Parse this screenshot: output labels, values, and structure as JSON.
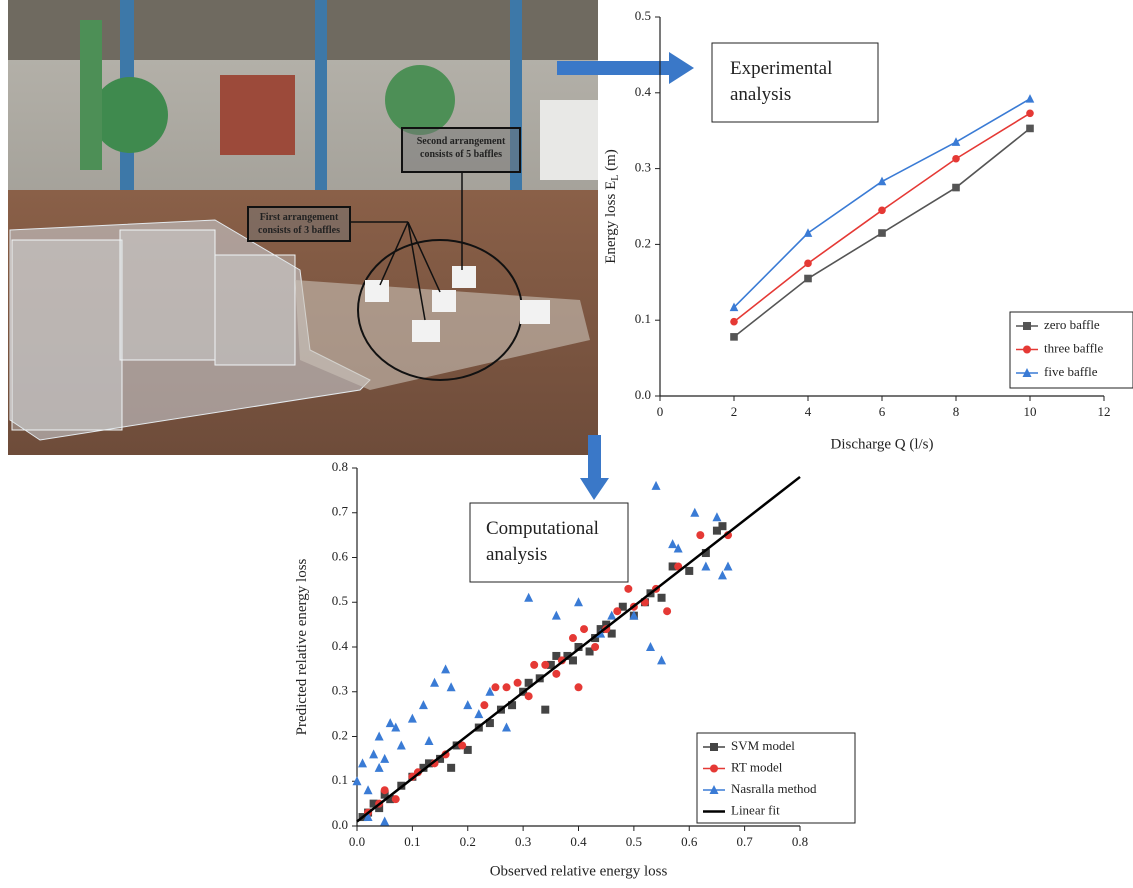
{
  "photo": {
    "labels": [
      [
        "Second arrangement",
        "consists of 5 baffles"
      ],
      [
        "First arrangement",
        "consists of 3 baffles"
      ]
    ]
  },
  "annotations": {
    "experimental": [
      "Experimental",
      "analysis"
    ],
    "computational": [
      "Computational",
      "analysis"
    ]
  },
  "chart_data": [
    {
      "type": "line",
      "xlabel": "Discharge Q (l/s)",
      "ylabel": "Energy loss E",
      "ylabel_sub": "L",
      "ylabel_unit": "(m)",
      "x": [
        2,
        4,
        6,
        8,
        10
      ],
      "series": [
        {
          "name": "zero baffle",
          "color": "#555555",
          "marker": "square",
          "values": [
            0.078,
            0.155,
            0.215,
            0.275,
            0.353
          ]
        },
        {
          "name": "three baffle",
          "color": "#e53935",
          "marker": "circle",
          "values": [
            0.098,
            0.175,
            0.245,
            0.313,
            0.373
          ]
        },
        {
          "name": "five baffle",
          "color": "#3a7bd5",
          "marker": "triangle",
          "values": [
            0.117,
            0.215,
            0.283,
            0.335,
            0.392
          ]
        }
      ],
      "xlim": [
        0,
        12
      ],
      "xticks": [
        0,
        2,
        4,
        6,
        8,
        10,
        12
      ],
      "ylim": [
        0,
        0.5
      ],
      "yticks": [
        {
          "value": 0,
          "label": "0.0"
        },
        0.1,
        0.2,
        0.3,
        0.4,
        0.5
      ],
      "legend": "lower right"
    },
    {
      "type": "scatter",
      "xlabel": "Observed relative energy loss",
      "ylabel": "Predicted relative energy loss",
      "series": [
        {
          "name": "SVM model",
          "color": "#444444",
          "marker": "square",
          "x": [
            0.01,
            0.02,
            0.03,
            0.04,
            0.05,
            0.06,
            0.08,
            0.1,
            0.12,
            0.13,
            0.15,
            0.17,
            0.18,
            0.2,
            0.22,
            0.24,
            0.26,
            0.28,
            0.3,
            0.31,
            0.33,
            0.34,
            0.35,
            0.36,
            0.38,
            0.39,
            0.4,
            0.42,
            0.43,
            0.44,
            0.45,
            0.46,
            0.48,
            0.5,
            0.52,
            0.53,
            0.55,
            0.57,
            0.6,
            0.63,
            0.65,
            0.66
          ],
          "values": [
            0.02,
            0.03,
            0.05,
            0.04,
            0.07,
            0.06,
            0.09,
            0.11,
            0.13,
            0.14,
            0.15,
            0.13,
            0.18,
            0.17,
            0.22,
            0.23,
            0.26,
            0.27,
            0.3,
            0.32,
            0.33,
            0.26,
            0.36,
            0.38,
            0.38,
            0.37,
            0.4,
            0.39,
            0.42,
            0.44,
            0.45,
            0.43,
            0.49,
            0.47,
            0.5,
            0.52,
            0.51,
            0.58,
            0.57,
            0.61,
            0.66,
            0.67
          ]
        },
        {
          "name": "RT model",
          "color": "#e53935",
          "marker": "circle",
          "x": [
            0.02,
            0.04,
            0.05,
            0.07,
            0.1,
            0.11,
            0.14,
            0.16,
            0.19,
            0.23,
            0.25,
            0.27,
            0.29,
            0.31,
            0.32,
            0.34,
            0.36,
            0.37,
            0.39,
            0.4,
            0.41,
            0.43,
            0.45,
            0.47,
            0.49,
            0.5,
            0.52,
            0.54,
            0.56,
            0.58,
            0.62,
            0.67
          ],
          "values": [
            0.03,
            0.05,
            0.08,
            0.06,
            0.11,
            0.12,
            0.14,
            0.16,
            0.18,
            0.27,
            0.31,
            0.31,
            0.32,
            0.29,
            0.36,
            0.36,
            0.34,
            0.37,
            0.42,
            0.31,
            0.44,
            0.4,
            0.44,
            0.48,
            0.53,
            0.49,
            0.5,
            0.53,
            0.48,
            0.58,
            0.65,
            0.65
          ]
        },
        {
          "name": "Nasralla method",
          "color": "#3a7bd5",
          "marker": "triangle",
          "x": [
            0.0,
            0.01,
            0.02,
            0.03,
            0.04,
            0.05,
            0.06,
            0.07,
            0.08,
            0.1,
            0.12,
            0.14,
            0.16,
            0.17,
            0.2,
            0.22,
            0.24,
            0.27,
            0.31,
            0.36,
            0.4,
            0.44,
            0.46,
            0.5,
            0.53,
            0.54,
            0.55,
            0.57,
            0.58,
            0.61,
            0.63,
            0.65,
            0.66,
            0.67,
            0.02,
            0.05,
            0.13,
            0.04
          ],
          "values": [
            0.1,
            0.14,
            0.08,
            0.16,
            0.2,
            0.15,
            0.23,
            0.22,
            0.18,
            0.24,
            0.27,
            0.32,
            0.35,
            0.31,
            0.27,
            0.25,
            0.3,
            0.22,
            0.51,
            0.47,
            0.5,
            0.43,
            0.47,
            0.47,
            0.4,
            0.76,
            0.37,
            0.63,
            0.62,
            0.7,
            0.58,
            0.69,
            0.56,
            0.58,
            0.02,
            0.01,
            0.19,
            0.13
          ]
        },
        {
          "name": "Linear fit",
          "color": "#000000",
          "marker": "line",
          "x": [
            0,
            0.8
          ],
          "values": [
            0.01,
            0.78
          ]
        }
      ],
      "xlim": [
        0,
        0.8
      ],
      "xticks": [
        {
          "value": 0,
          "label": "0.0"
        },
        0.1,
        0.2,
        0.3,
        0.4,
        0.5,
        0.6,
        0.7,
        0.8
      ],
      "ylim": [
        0,
        0.8
      ],
      "yticks": [
        {
          "value": 0,
          "label": "0.0"
        },
        0.1,
        0.2,
        0.3,
        0.4,
        0.5,
        0.6,
        0.7,
        0.8
      ],
      "legend": "lower right"
    }
  ]
}
